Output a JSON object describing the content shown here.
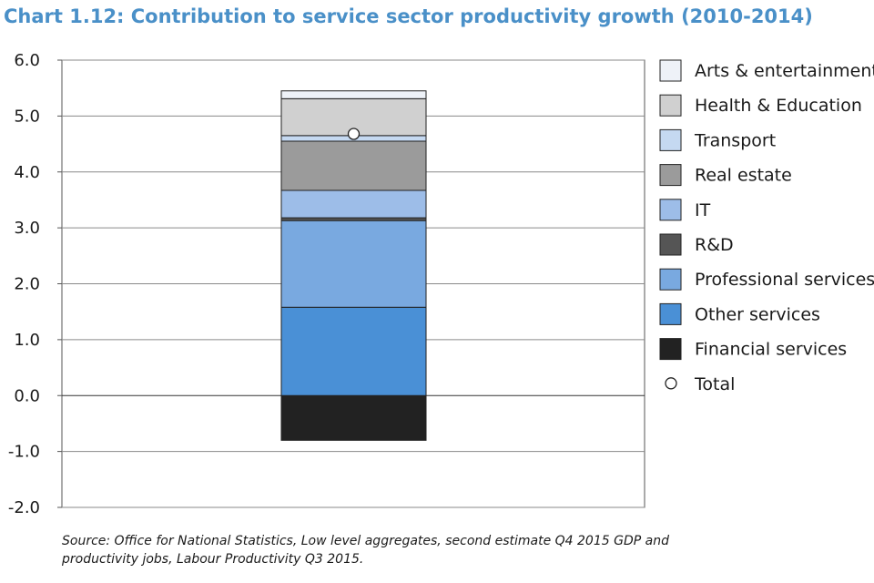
{
  "title": "Chart 1.12: Contribution to service sector productivity growth (2010-2014)",
  "source": "Source: Office for National Statistics, Low level aggregates, second estimate Q4 2015 GDP and productivity jobs, Labour Productivity Q3 2015.",
  "chart_data": {
    "type": "bar",
    "stacked": true,
    "categories": [
      ""
    ],
    "ylim": [
      -2.0,
      6.0
    ],
    "yticks": [
      "6.0",
      "5.0",
      "4.0",
      "3.0",
      "2.0",
      "1.0",
      "0.0",
      "-1.0",
      "-2.0"
    ],
    "grid": true,
    "legend_position": "right",
    "series": [
      {
        "name": "Financial services",
        "values": [
          -0.8
        ],
        "color": "#222222"
      },
      {
        "name": "Other services",
        "values": [
          1.58
        ],
        "color": "#4a90d6"
      },
      {
        "name": "Professional services",
        "values": [
          1.55
        ],
        "color": "#79a9e0"
      },
      {
        "name": "R&D",
        "values": [
          0.05
        ],
        "color": "#555555"
      },
      {
        "name": "IT",
        "values": [
          0.49
        ],
        "color": "#9dbde8"
      },
      {
        "name": "Real estate",
        "values": [
          0.88
        ],
        "color": "#9b9b9b"
      },
      {
        "name": "Transport",
        "values": [
          0.1
        ],
        "color": "#c5d9f1"
      },
      {
        "name": "Health & Education",
        "values": [
          0.66
        ],
        "color": "#d0d0d0"
      },
      {
        "name": "Arts & entertainment",
        "values": [
          0.14
        ],
        "color": "#eef2f8"
      }
    ],
    "total": {
      "name": "Total",
      "values": [
        4.68
      ]
    },
    "legend_order": [
      "Arts & entertainment",
      "Health & Education",
      "Transport",
      "Real estate",
      "IT",
      "R&D",
      "Professional services",
      "Other services",
      "Financial services",
      "Total"
    ]
  }
}
